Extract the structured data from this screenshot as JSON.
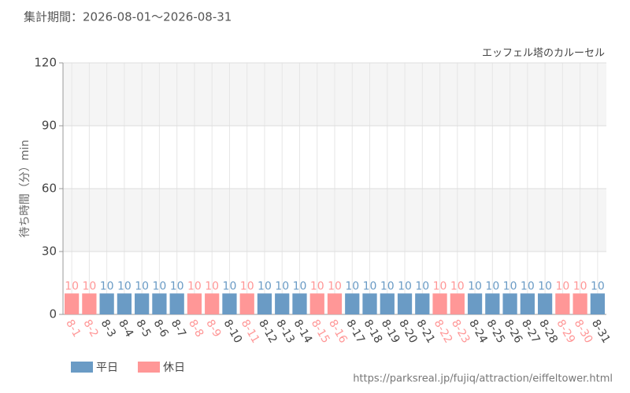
{
  "chart_data": {
    "type": "bar",
    "title": "集計期間：2026-08-01～2026-08-31",
    "subtitle": "エッフェル塔のカルーセル",
    "y_label": "待ち時間（分）min",
    "source": "https://parksreal.jp/fujiq/attraction/eiffeltower.html",
    "categories": [
      "8-1",
      "8-2",
      "8-3",
      "8-4",
      "8-5",
      "8-6",
      "8-7",
      "8-8",
      "8-9",
      "8-10",
      "8-11",
      "8-12",
      "8-13",
      "8-14",
      "8-15",
      "8-16",
      "8-17",
      "8-18",
      "8-19",
      "8-20",
      "8-21",
      "8-22",
      "8-23",
      "8-24",
      "8-25",
      "8-26",
      "8-27",
      "8-28",
      "8-29",
      "8-30",
      "8-31"
    ],
    "series": [
      {
        "name": "平日",
        "color": "#6a9bc5",
        "values": [
          null,
          null,
          10,
          10,
          10,
          10,
          10,
          null,
          null,
          10,
          null,
          10,
          10,
          10,
          null,
          null,
          10,
          10,
          10,
          10,
          10,
          null,
          null,
          10,
          10,
          10,
          10,
          10,
          null,
          null,
          10
        ]
      },
      {
        "name": "休日",
        "color": "#ff9797",
        "values": [
          10,
          10,
          null,
          null,
          null,
          null,
          null,
          10,
          10,
          null,
          10,
          null,
          null,
          null,
          10,
          10,
          null,
          null,
          null,
          null,
          null,
          10,
          10,
          null,
          null,
          null,
          null,
          null,
          10,
          10,
          null
        ]
      }
    ],
    "ylim": [
      0,
      120
    ],
    "yticks": [
      0,
      30,
      60,
      90,
      120
    ],
    "grid": true
  }
}
